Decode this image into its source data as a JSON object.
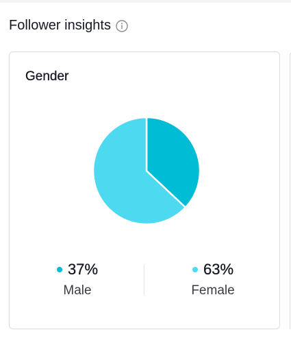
{
  "section": {
    "title": "Follower insights",
    "info_icon": "info-icon"
  },
  "gender_card": {
    "title": "Gender",
    "colors": {
      "male": "#00bcd4",
      "female": "#4dd9ef"
    },
    "legend": [
      {
        "value": "37%",
        "label": "Male"
      },
      {
        "value": "63%",
        "label": "Female"
      }
    ]
  },
  "chart_data": {
    "type": "pie",
    "categories": [
      "Male",
      "Female"
    ],
    "values": [
      37,
      63
    ],
    "title": "Gender"
  }
}
